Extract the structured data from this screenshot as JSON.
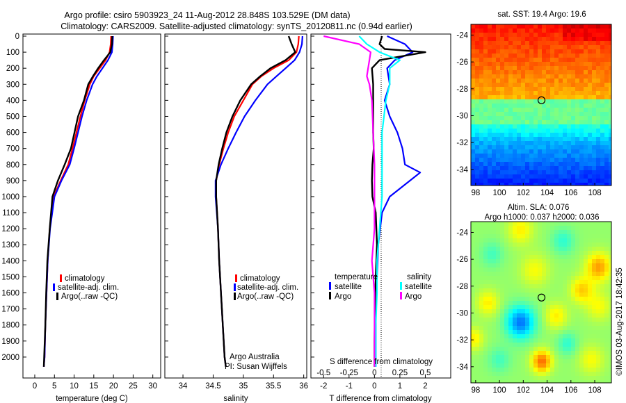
{
  "header": {
    "line1": "Argo profile: csiro 5903923_24 11-Aug-2012 28.848S 103.529E (DM data)",
    "line2": "Climatology: CARS2009. Satellite-adjusted climatology: synTS_20120811.nc (0.94d earlier)"
  },
  "colors": {
    "climatology": "#ff0000",
    "satellite": "#0000ff",
    "argo": "#000000",
    "argo_salinity_diff": "#ff00ff",
    "satellite_salinity_diff": "#00ffff"
  },
  "chart_data": [
    {
      "type": "line",
      "xlabel": "temperature (deg C)",
      "ylabel": "",
      "xlim": [
        -3,
        32
      ],
      "ylim": [
        2100,
        0
      ],
      "xticks": [
        "0",
        "5",
        "10",
        "15",
        "20",
        "25",
        "30"
      ],
      "yticks": [
        "0",
        "100",
        "200",
        "300",
        "400",
        "500",
        "600",
        "700",
        "800",
        "900",
        "1000",
        "1100",
        "1200",
        "1300",
        "1400",
        "1500",
        "1600",
        "1700",
        "1800",
        "1900",
        "2000"
      ],
      "legend": {
        "position": "bottom-center",
        "entries": [
          "climatology",
          "satellite-adj. clim.",
          "Argo(..raw -QC)"
        ]
      },
      "series": [
        {
          "name": "climatology",
          "color": "#ff0000",
          "x": [
            19.4,
            19.3,
            19.0,
            18.0,
            16.5,
            15.0,
            14.0,
            12.7,
            11.6,
            10.6,
            9.6,
            8.5,
            6.6,
            4.8,
            3.8,
            3.3,
            3.0,
            2.7,
            2.5,
            2.3
          ],
          "y": [
            0,
            50,
            100,
            150,
            200,
            250,
            300,
            400,
            500,
            600,
            700,
            800,
            900,
            1000,
            1200,
            1400,
            1600,
            1800,
            2000,
            2060
          ]
        },
        {
          "name": "satellite-adj. clim.",
          "color": "#0000ff",
          "x": [
            19.9,
            19.8,
            19.6,
            18.6,
            17.2,
            15.8,
            14.7,
            13.2,
            12.0,
            11.0,
            10.0,
            8.9,
            6.8,
            5.0,
            3.9,
            3.3,
            3.0,
            2.7,
            2.5,
            2.3
          ],
          "y": [
            0,
            50,
            100,
            150,
            200,
            250,
            300,
            400,
            500,
            600,
            700,
            800,
            900,
            1000,
            1200,
            1400,
            1600,
            1800,
            2000,
            2060
          ]
        },
        {
          "name": "Argo(..raw -QC)",
          "color": "#000000",
          "x": [
            19.7,
            19.6,
            19.2,
            17.6,
            16.1,
            14.8,
            13.6,
            12.5,
            11.0,
            10.1,
            9.2,
            7.6,
            5.9,
            4.5,
            3.8,
            3.2,
            2.9,
            2.7,
            2.4,
            2.3
          ],
          "y": [
            0,
            50,
            100,
            150,
            200,
            250,
            300,
            400,
            500,
            600,
            700,
            800,
            900,
            1000,
            1200,
            1400,
            1600,
            1800,
            2000,
            2060
          ]
        }
      ]
    },
    {
      "type": "line",
      "xlabel": "salinity",
      "ylabel": "",
      "xlim": [
        33.7,
        36.05
      ],
      "ylim": [
        2100,
        0
      ],
      "xticks": [
        "34",
        "34.5",
        "35",
        "35.5",
        "36"
      ],
      "legend": {
        "position": "bottom-center",
        "entries": [
          "climatology",
          "satellite-adj. clim.",
          "Argo(..raw -QC)"
        ]
      },
      "annotation": [
        "Argo Australia",
        "PI: Susan Wijffels"
      ],
      "series": [
        {
          "name": "climatology",
          "color": "#ff0000",
          "x": [
            35.92,
            35.91,
            35.88,
            35.75,
            35.5,
            35.3,
            35.15,
            35.0,
            34.85,
            34.75,
            34.67,
            34.6,
            34.55,
            34.55,
            34.58,
            34.6,
            34.63,
            34.66,
            34.69,
            34.71
          ],
          "y": [
            0,
            50,
            100,
            150,
            200,
            250,
            300,
            400,
            500,
            600,
            700,
            800,
            900,
            1000,
            1200,
            1400,
            1600,
            1800,
            2000,
            2060
          ]
        },
        {
          "name": "satellite-adj. clim.",
          "color": "#0000ff",
          "x": [
            35.98,
            35.97,
            35.93,
            35.85,
            35.7,
            35.55,
            35.4,
            35.2,
            35.02,
            34.88,
            34.75,
            34.63,
            34.54,
            34.54,
            34.58,
            34.6,
            34.63,
            34.66,
            34.69,
            34.71
          ],
          "y": [
            0,
            50,
            100,
            150,
            200,
            250,
            300,
            400,
            500,
            600,
            700,
            800,
            900,
            1000,
            1200,
            1400,
            1600,
            1800,
            2000,
            2060
          ]
        },
        {
          "name": "Argo(..raw -QC)",
          "color": "#000000",
          "x": [
            35.75,
            35.8,
            35.86,
            35.7,
            35.45,
            35.28,
            35.13,
            34.95,
            34.82,
            34.72,
            34.65,
            34.59,
            34.55,
            34.55,
            34.58,
            34.6,
            34.63,
            34.66,
            34.69,
            34.71
          ],
          "y": [
            0,
            50,
            100,
            150,
            200,
            250,
            300,
            400,
            500,
            600,
            700,
            800,
            900,
            1000,
            1200,
            1400,
            1600,
            1800,
            2000,
            2060
          ]
        }
      ]
    },
    {
      "type": "line",
      "xlabel": "T difference from climatology",
      "xlabel2": "S difference from climatology",
      "xlim": [
        -2.5,
        3
      ],
      "ylim": [
        2100,
        0
      ],
      "xticks": [
        "-2",
        "-1",
        "0",
        "1",
        "2"
      ],
      "xticks2": [
        "-0.5",
        "-0.25",
        "0",
        "0.25",
        "0.5"
      ],
      "legend": {
        "position": "bottom",
        "group_titles": [
          "temperature",
          "salinity"
        ],
        "entries": [
          "satellite",
          "Argo",
          "satellite",
          "Argo"
        ]
      },
      "series": [
        {
          "name": "satellite",
          "group": "temperature",
          "color": "#0000ff",
          "x": [
            0.5,
            1.2,
            1.5,
            0.8,
            0.5,
            0.6,
            0.4,
            0.6,
            0.9,
            1.1,
            1.2,
            1.8,
            1.4,
            0.6,
            0.3,
            0.15,
            0.1,
            0.05,
            0.05,
            0.05
          ],
          "y": [
            0,
            50,
            100,
            150,
            200,
            300,
            400,
            500,
            600,
            700,
            800,
            850,
            900,
            1000,
            1100,
            1300,
            1500,
            1700,
            1900,
            2060
          ]
        },
        {
          "name": "Argo",
          "group": "temperature",
          "color": "#000000",
          "x": [
            0.3,
            0.2,
            0.4,
            2.0,
            0.2,
            -0.1,
            -0.05,
            -0.05,
            -0.05,
            -0.05,
            -0.03,
            -0.08,
            -0.1,
            -0.08,
            0.05,
            0.1,
            0.05,
            0.02,
            0.0,
            0.0
          ],
          "y": [
            0,
            50,
            80,
            100,
            150,
            200,
            300,
            400,
            500,
            600,
            700,
            800,
            900,
            1000,
            1100,
            1300,
            1500,
            1700,
            1900,
            2060
          ]
        },
        {
          "name": "satellite",
          "group": "salinity",
          "color": "#00ffff",
          "x": [
            -0.6,
            -0.3,
            0.2,
            1.0,
            0.6,
            0.6,
            0.45,
            0.3,
            0.3,
            0.3,
            0.2,
            0.1,
            0.1,
            0.05,
            0.05
          ],
          "y": [
            0,
            50,
            100,
            150,
            200,
            300,
            400,
            600,
            800,
            1000,
            1200,
            1400,
            1600,
            1800,
            2060
          ]
        },
        {
          "name": "Argo",
          "group": "salinity",
          "color": "#ff00ff",
          "x": [
            -2.0,
            -0.6,
            -0.15,
            -0.2,
            -0.3,
            -0.2,
            -0.1,
            -0.05,
            0.0,
            0.0,
            0.0,
            -0.1,
            0.0,
            0.0,
            0.0
          ],
          "y": [
            0,
            50,
            100,
            150,
            250,
            300,
            400,
            600,
            800,
            1000,
            1200,
            1400,
            1600,
            1800,
            2060
          ]
        }
      ]
    },
    {
      "type": "heatmap",
      "title": "sat. SST: 19.4 Argo: 19.6",
      "xlim": [
        97.6,
        109.4
      ],
      "ylim": [
        -35.2,
        -23.2
      ],
      "xticks": [
        "98",
        "100",
        "102",
        "104",
        "106",
        "108"
      ],
      "yticks": [
        "-24",
        "-26",
        "-28",
        "-30",
        "-32",
        "-34"
      ],
      "marker": {
        "lon": 103.53,
        "lat": -28.85
      }
    },
    {
      "type": "heatmap",
      "title": [
        "Altim. SLA: 0.076",
        "Argo h1000: 0.037 h2000: 0.036"
      ],
      "xlim": [
        97.6,
        109.4
      ],
      "ylim": [
        -35.2,
        -23.2
      ],
      "xticks": [
        "98",
        "100",
        "102",
        "104",
        "106",
        "108"
      ],
      "yticks": [
        "-24",
        "-26",
        "-28",
        "-30",
        "-32",
        "-34"
      ],
      "marker": {
        "lon": 103.53,
        "lat": -28.85
      }
    }
  ],
  "footer_stamp": "©IMOS 03-Aug-2017 18:42:35"
}
